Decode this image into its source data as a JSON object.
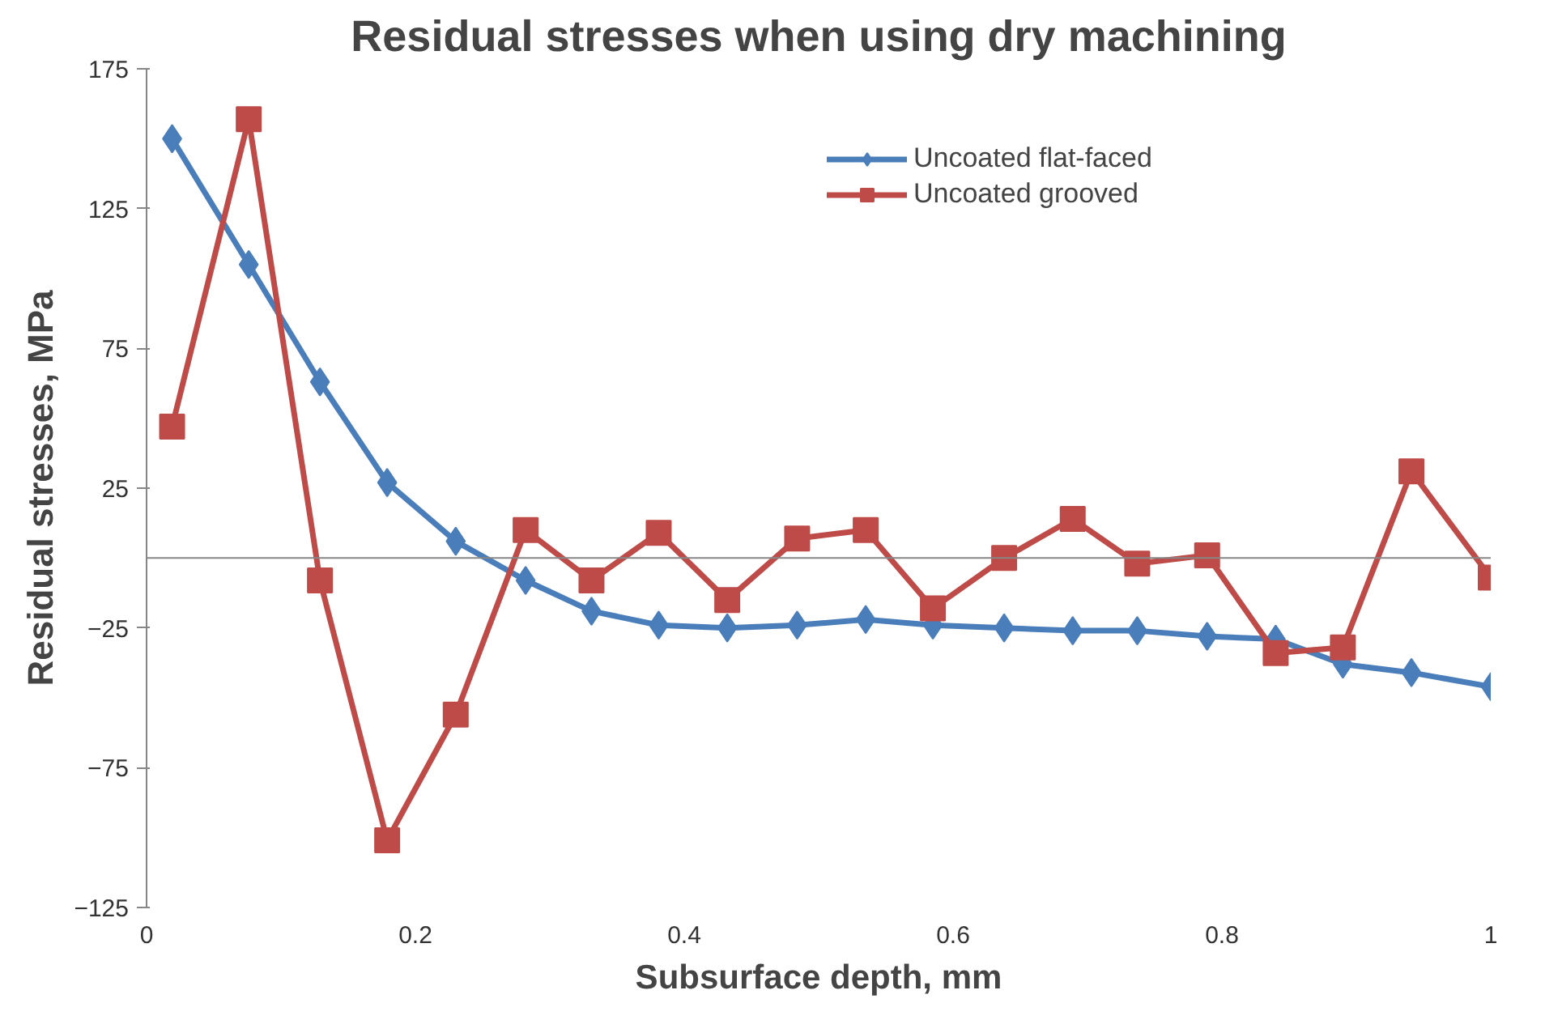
{
  "chart_data": {
    "type": "line",
    "title": "Residual stresses when using dry machining",
    "xlabel": "Subsurface depth, mm",
    "ylabel": "Residual stresses, MPa",
    "x": [
      0.019,
      0.076,
      0.129,
      0.179,
      0.23,
      0.282,
      0.331,
      0.381,
      0.432,
      0.484,
      0.535,
      0.585,
      0.638,
      0.689,
      0.737,
      0.789,
      0.84,
      0.89,
      0.941,
      1.0
    ],
    "series": [
      {
        "name": "Uncoated flat-faced",
        "color": "#4a7ebb",
        "marker": "diamond",
        "values": [
          150,
          105,
          63,
          27,
          6,
          -8,
          -19,
          -24,
          -25,
          -24,
          -22,
          -24,
          -25,
          -26,
          -26,
          -28,
          -29,
          -38,
          -41,
          -46
        ]
      },
      {
        "name": "Uncoated grooved",
        "color": "#be4b48",
        "marker": "square",
        "values": [
          47,
          157,
          -8,
          -101,
          -56,
          10,
          -8,
          9,
          -15,
          7,
          10,
          -18,
          0,
          14,
          -2,
          1,
          -34,
          -32,
          31,
          -7
        ]
      }
    ],
    "xlim": [
      0,
      1
    ],
    "xticks": [
      0,
      0.2,
      0.4,
      0.6,
      0.8,
      1
    ],
    "ylim": [
      -125,
      175
    ],
    "yticks": [
      175,
      125,
      75,
      25,
      -25,
      -75,
      -125
    ],
    "grid": false,
    "legend": "top right"
  }
}
